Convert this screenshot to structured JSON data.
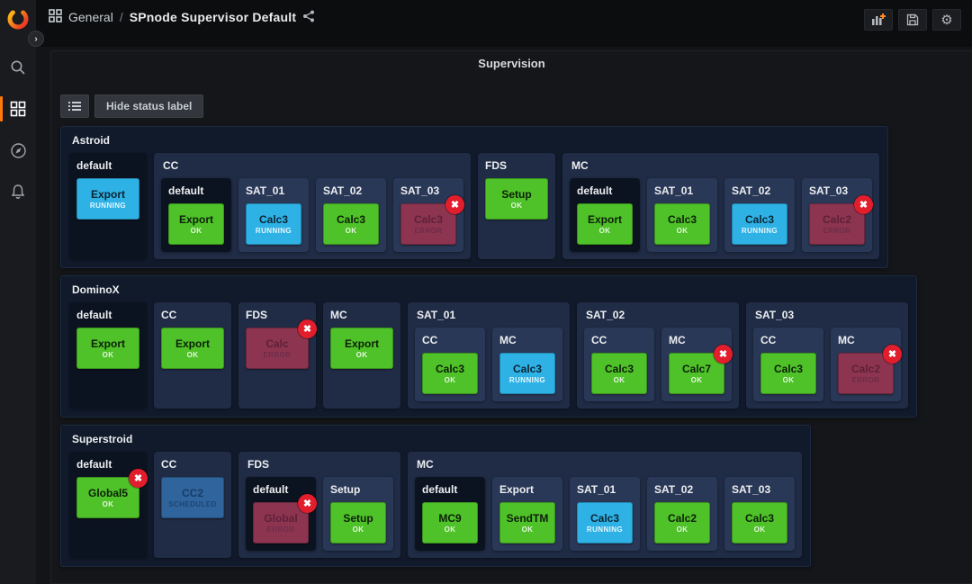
{
  "header": {
    "breadcrumb": {
      "section": "General",
      "separator": "/",
      "title": "SPnode Supervisor Default"
    },
    "actions": [
      "add-panel",
      "save-dashboard",
      "dashboard-settings"
    ]
  },
  "sidebar": {
    "icons": [
      "grafana-logo",
      "search",
      "dashboards",
      "explore",
      "alerting"
    ],
    "active": "dashboards"
  },
  "panel": {
    "title": "Supervision",
    "toolbar": {
      "list_button": "list",
      "hide_status_label": "Hide status label"
    }
  },
  "colors": {
    "ok": "#4ec228",
    "running": "#2eb2e6",
    "error": "#8d3550",
    "scheduled": "#2f649d",
    "badge": "#e21d2c",
    "accent_orange": "#ff780a",
    "row_bg": "#111a2b",
    "group_bg": "#202c46",
    "child_bg": "#2a3857",
    "dark_bg": "#0c1320"
  },
  "rows": [
    {
      "label": "Astroid",
      "items": [
        {
          "type": "leaf",
          "label": "default",
          "tone": "dark",
          "button": {
            "text": "Export",
            "status": "RUNNING",
            "state": "running"
          }
        },
        {
          "type": "group",
          "label": "CC",
          "children": [
            {
              "label": "default",
              "tone": "dark",
              "button": {
                "text": "Export",
                "status": "OK",
                "state": "ok"
              }
            },
            {
              "label": "SAT_01",
              "tone": "light",
              "button": {
                "text": "Calc3",
                "status": "RUNNING",
                "state": "running"
              }
            },
            {
              "label": "SAT_02",
              "tone": "light",
              "button": {
                "text": "Calc3",
                "status": "OK",
                "state": "ok"
              }
            },
            {
              "label": "SAT_03",
              "tone": "light",
              "button": {
                "text": "Calc3",
                "status": "ERROR",
                "state": "error",
                "badge": true
              }
            }
          ]
        },
        {
          "type": "leaf",
          "label": "FDS",
          "tone": "navy",
          "button": {
            "text": "Setup",
            "status": "OK",
            "state": "ok"
          }
        },
        {
          "type": "group",
          "label": "MC",
          "children": [
            {
              "label": "default",
              "tone": "dark",
              "button": {
                "text": "Export",
                "status": "OK",
                "state": "ok"
              }
            },
            {
              "label": "SAT_01",
              "tone": "light",
              "button": {
                "text": "Calc3",
                "status": "OK",
                "state": "ok"
              }
            },
            {
              "label": "SAT_02",
              "tone": "light",
              "button": {
                "text": "Calc3",
                "status": "RUNNING",
                "state": "running"
              }
            },
            {
              "label": "SAT_03",
              "tone": "light",
              "button": {
                "text": "Calc2",
                "status": "ERROR",
                "state": "error",
                "badge": true
              }
            }
          ]
        }
      ]
    },
    {
      "label": "DominoX",
      "items": [
        {
          "type": "leaf",
          "label": "default",
          "tone": "dark",
          "button": {
            "text": "Export",
            "status": "OK",
            "state": "ok"
          }
        },
        {
          "type": "leaf",
          "label": "CC",
          "tone": "navy",
          "button": {
            "text": "Export",
            "status": "OK",
            "state": "ok"
          }
        },
        {
          "type": "leaf",
          "label": "FDS",
          "tone": "navy",
          "button": {
            "text": "Calc",
            "status": "ERROR",
            "state": "error",
            "badge": true
          }
        },
        {
          "type": "leaf",
          "label": "MC",
          "tone": "navy",
          "button": {
            "text": "Export",
            "status": "OK",
            "state": "ok"
          }
        },
        {
          "type": "group",
          "label": "SAT_01",
          "children": [
            {
              "label": "CC",
              "tone": "light",
              "button": {
                "text": "Calc3",
                "status": "OK",
                "state": "ok"
              }
            },
            {
              "label": "MC",
              "tone": "light",
              "button": {
                "text": "Calc3",
                "status": "RUNNING",
                "state": "running"
              }
            }
          ]
        },
        {
          "type": "group",
          "label": "SAT_02",
          "children": [
            {
              "label": "CC",
              "tone": "light",
              "button": {
                "text": "Calc3",
                "status": "OK",
                "state": "ok"
              }
            },
            {
              "label": "MC",
              "tone": "light",
              "button": {
                "text": "Calc7",
                "status": "OK",
                "state": "ok",
                "badge": true
              }
            }
          ]
        },
        {
          "type": "group",
          "label": "SAT_03",
          "children": [
            {
              "label": "CC",
              "tone": "light",
              "button": {
                "text": "Calc3",
                "status": "OK",
                "state": "ok"
              }
            },
            {
              "label": "MC",
              "tone": "light",
              "button": {
                "text": "Calc2",
                "status": "ERROR",
                "state": "error",
                "badge": true
              }
            }
          ]
        }
      ]
    },
    {
      "label": "Superstroid",
      "items": [
        {
          "type": "leaf",
          "label": "default",
          "tone": "dark",
          "button": {
            "text": "Global5",
            "status": "OK",
            "state": "ok",
            "badge": true
          }
        },
        {
          "type": "leaf",
          "label": "CC",
          "tone": "navy",
          "button": {
            "text": "CC2",
            "status": "SCHEDULED",
            "state": "scheduled"
          }
        },
        {
          "type": "group",
          "label": "FDS",
          "children": [
            {
              "label": "default",
              "tone": "dark",
              "button": {
                "text": "Global",
                "status": "ERROR",
                "state": "error",
                "badge": true
              }
            },
            {
              "label": "Setup",
              "tone": "light",
              "button": {
                "text": "Setup",
                "status": "OK",
                "state": "ok"
              }
            }
          ]
        },
        {
          "type": "group",
          "label": "MC",
          "children": [
            {
              "label": "default",
              "tone": "dark",
              "button": {
                "text": "MC9",
                "status": "OK",
                "state": "ok"
              }
            },
            {
              "label": "Export",
              "tone": "light",
              "button": {
                "text": "SendTM",
                "status": "OK",
                "state": "ok"
              }
            },
            {
              "label": "SAT_01",
              "tone": "light",
              "button": {
                "text": "Calc3",
                "status": "RUNNING",
                "state": "running"
              }
            },
            {
              "label": "SAT_02",
              "tone": "light",
              "button": {
                "text": "Calc2",
                "status": "OK",
                "state": "ok"
              }
            },
            {
              "label": "SAT_03",
              "tone": "light",
              "button": {
                "text": "Calc3",
                "status": "OK",
                "state": "ok"
              }
            }
          ]
        }
      ]
    }
  ]
}
